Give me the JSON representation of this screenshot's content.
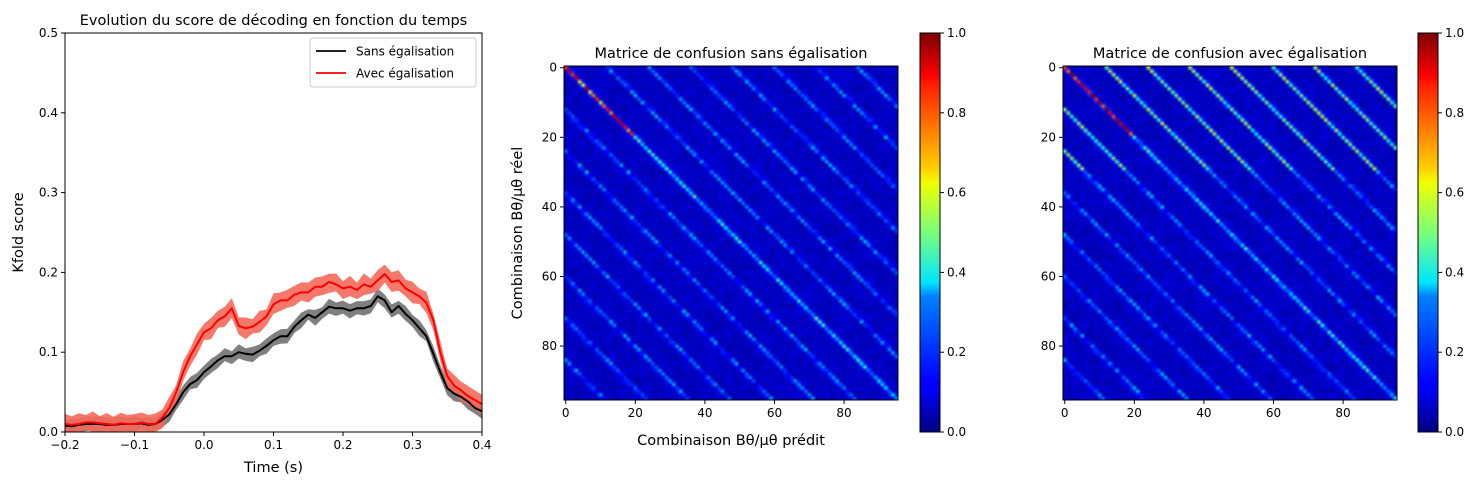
{
  "chart_data": [
    {
      "type": "line",
      "title": "Evolution du score de décoding en fonction du temps",
      "xlabel": "Time (s)",
      "ylabel": "Kfold score",
      "xlim": [
        -0.2,
        0.4
      ],
      "ylim": [
        0,
        0.5
      ],
      "xticks": [
        "−0.2",
        "−0.1",
        "0.0",
        "0.1",
        "0.2",
        "0.3",
        "0.4"
      ],
      "xtick_values": [
        -0.2,
        -0.1,
        0.0,
        0.1,
        0.2,
        0.3,
        0.4
      ],
      "yticks": [
        "0.0",
        "0.1",
        "0.2",
        "0.3",
        "0.4",
        "0.5"
      ],
      "ytick_values": [
        0.0,
        0.1,
        0.2,
        0.3,
        0.4,
        0.5
      ],
      "legend_position": "top-right",
      "grid": false,
      "x": [
        -0.2,
        -0.19,
        -0.18,
        -0.17,
        -0.16,
        -0.15,
        -0.14,
        -0.13,
        -0.12,
        -0.11,
        -0.1,
        -0.09,
        -0.08,
        -0.07,
        -0.06,
        -0.05,
        -0.04,
        -0.03,
        -0.02,
        -0.01,
        0.0,
        0.01,
        0.02,
        0.03,
        0.04,
        0.05,
        0.06,
        0.07,
        0.08,
        0.09,
        0.1,
        0.11,
        0.12,
        0.13,
        0.14,
        0.15,
        0.16,
        0.17,
        0.18,
        0.19,
        0.2,
        0.21,
        0.22,
        0.23,
        0.24,
        0.25,
        0.26,
        0.27,
        0.28,
        0.29,
        0.3,
        0.31,
        0.32,
        0.33,
        0.34,
        0.35,
        0.36,
        0.37,
        0.38,
        0.39,
        0.4
      ],
      "series": [
        {
          "name": "Sans égalisation",
          "color": "#000000",
          "band_color": "#808080",
          "values": [
            0.008,
            0.007,
            0.009,
            0.01,
            0.01,
            0.01,
            0.009,
            0.009,
            0.01,
            0.01,
            0.01,
            0.011,
            0.009,
            0.01,
            0.015,
            0.022,
            0.035,
            0.05,
            0.06,
            0.065,
            0.075,
            0.082,
            0.09,
            0.095,
            0.095,
            0.1,
            0.098,
            0.097,
            0.102,
            0.108,
            0.115,
            0.12,
            0.12,
            0.132,
            0.14,
            0.147,
            0.143,
            0.15,
            0.157,
            0.155,
            0.155,
            0.152,
            0.155,
            0.155,
            0.158,
            0.17,
            0.165,
            0.15,
            0.158,
            0.148,
            0.14,
            0.13,
            0.12,
            0.098,
            0.075,
            0.055,
            0.048,
            0.044,
            0.038,
            0.03,
            0.026
          ],
          "band_halfwidth": 0.008
        },
        {
          "name": "Avec égalisation",
          "color": "#ff0000",
          "band_color": "#f36a5a",
          "values": [
            0.01,
            0.009,
            0.01,
            0.012,
            0.012,
            0.011,
            0.01,
            0.009,
            0.011,
            0.01,
            0.01,
            0.012,
            0.01,
            0.01,
            0.018,
            0.03,
            0.05,
            0.075,
            0.095,
            0.11,
            0.125,
            0.13,
            0.14,
            0.145,
            0.155,
            0.133,
            0.13,
            0.132,
            0.138,
            0.145,
            0.16,
            0.165,
            0.165,
            0.172,
            0.175,
            0.175,
            0.182,
            0.182,
            0.188,
            0.185,
            0.18,
            0.182,
            0.178,
            0.185,
            0.182,
            0.19,
            0.198,
            0.188,
            0.19,
            0.18,
            0.175,
            0.17,
            0.162,
            0.14,
            0.1,
            0.07,
            0.058,
            0.052,
            0.045,
            0.04,
            0.035
          ],
          "band_halfwidth": 0.011
        }
      ]
    },
    {
      "type": "heatmap",
      "title": "Matrice de confusion sans égalisation",
      "xlabel": "Combinaison Bθ/μθ prédit",
      "ylabel": "Combinaison Bθ/μθ réel",
      "size": 96,
      "xticks": [
        "0",
        "20",
        "40",
        "60",
        "80"
      ],
      "xtick_values": [
        0,
        20,
        40,
        60,
        80
      ],
      "yticks": [
        "0",
        "20",
        "40",
        "60",
        "80"
      ],
      "ytick_values": [
        0,
        20,
        40,
        60,
        80
      ],
      "colormap": "jet",
      "vmin": 0,
      "vmax": 1,
      "colorbar_ticks": [
        "0.0",
        "0.2",
        "0.4",
        "0.6",
        "0.8",
        "1.0"
      ],
      "colorbar_tick_values": [
        0.0,
        0.2,
        0.4,
        0.6,
        0.8,
        1.0
      ],
      "pattern": "dominant main diagonal plus parallel off-diagonals spaced 12 apart; strong values near the top-left"
    },
    {
      "type": "heatmap",
      "title": "Matrice de confusion avec égalisation",
      "xlabel": "",
      "ylabel": "",
      "size": 96,
      "xticks": [
        "0",
        "20",
        "40",
        "60",
        "80"
      ],
      "xtick_values": [
        0,
        20,
        40,
        60,
        80
      ],
      "yticks": [
        "0",
        "20",
        "40",
        "60",
        "80"
      ],
      "ytick_values": [
        0,
        20,
        40,
        60,
        80
      ],
      "colormap": "jet",
      "vmin": 0,
      "vmax": 1,
      "colorbar_ticks": [
        "0.0",
        "0.2",
        "0.4",
        "0.6",
        "0.8",
        "1.0"
      ],
      "colorbar_tick_values": [
        0.0,
        0.2,
        0.4,
        0.6,
        0.8,
        1.0
      ],
      "pattern": "dominant main diagonal plus parallel off-diagonals spaced 12 apart; stronger concentration near the top-left"
    }
  ]
}
